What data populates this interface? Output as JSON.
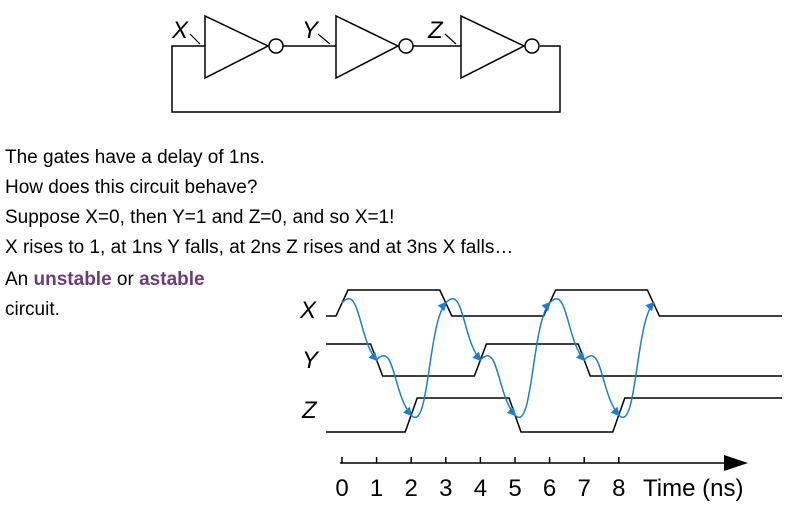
{
  "circuit": {
    "signal_labels": [
      "X",
      "Y",
      "Z"
    ]
  },
  "text": {
    "line1": "The gates have a delay of 1ns.",
    "line2": "How does this circuit behave?",
    "line3": "Suppose X=0, then Y=1 and Z=0, and so X=1!",
    "line4": "X rises to 1, at 1ns Y falls, at 2ns Z rises and at 3ns X falls…",
    "line5_prefix": "An ",
    "line5_term1": "unstable",
    "line5_mid": " or ",
    "line5_term2": "astable",
    "line6": "circuit."
  },
  "timing": {
    "signals": [
      {
        "name": "X",
        "start": 0,
        "transitions": [
          0,
          3,
          6,
          9
        ]
      },
      {
        "name": "Y",
        "start": 1,
        "transitions": [
          1,
          4,
          7
        ]
      },
      {
        "name": "Z",
        "start": 0,
        "transitions": [
          2,
          5,
          8
        ]
      }
    ],
    "axis": {
      "ticks": [
        "0",
        "1",
        "2",
        "3",
        "4",
        "5",
        "6",
        "7",
        "8"
      ],
      "label": "Time (ns)"
    },
    "arrow_color": "#1e7fc8"
  }
}
